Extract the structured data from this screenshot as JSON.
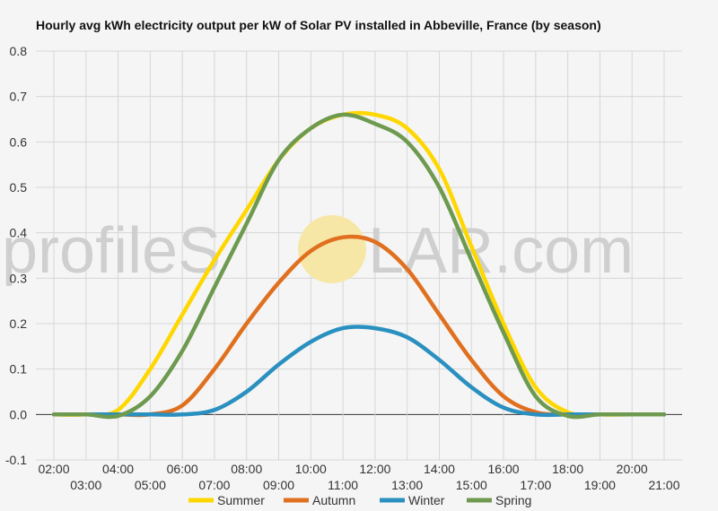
{
  "watermark": {
    "text_left": "profileS",
    "text_right": "LAR.com",
    "sun_color": "#f7e7a6"
  },
  "chart_data": {
    "type": "line",
    "title": "Hourly avg kWh electricity output per kW of Solar PV installed in Abbeville, France (by season)",
    "xlabel": "",
    "ylabel": "",
    "ylim": [
      -0.1,
      0.8
    ],
    "y_ticks": [
      "-0.1",
      "0.0",
      "0.1",
      "0.2",
      "0.3",
      "0.4",
      "0.5",
      "0.6",
      "0.7",
      "0.8"
    ],
    "y_tick_values": [
      -0.1,
      0.0,
      0.1,
      0.2,
      0.3,
      0.4,
      0.5,
      0.6,
      0.7,
      0.8
    ],
    "x_tick_labels": [
      "02:00",
      "03:00",
      "04:00",
      "05:00",
      "06:00",
      "07:00",
      "08:00",
      "09:00",
      "10:00",
      "11:00",
      "12:00",
      "13:00",
      "14:00",
      "15:00",
      "16:00",
      "17:00",
      "18:00",
      "19:00",
      "20:00",
      "21:00"
    ],
    "x": [
      2,
      3,
      4,
      5,
      6,
      7,
      8,
      9,
      10,
      11,
      12,
      13,
      14,
      15,
      16,
      17,
      18,
      19,
      20,
      21
    ],
    "grid": true,
    "legend_position": "bottom",
    "series": [
      {
        "name": "Summer",
        "color": "#ffd700",
        "values": [
          0,
          0,
          0.01,
          0.1,
          0.22,
          0.34,
          0.45,
          0.56,
          0.63,
          0.66,
          0.66,
          0.63,
          0.54,
          0.37,
          0.2,
          0.06,
          0.005,
          0,
          0,
          0
        ]
      },
      {
        "name": "Autumn",
        "color": "#e07020",
        "values": [
          0,
          0,
          0,
          0,
          0.02,
          0.1,
          0.2,
          0.29,
          0.36,
          0.39,
          0.38,
          0.32,
          0.22,
          0.12,
          0.04,
          0.005,
          0,
          0,
          0,
          0
        ]
      },
      {
        "name": "Winter",
        "color": "#2a90c0",
        "values": [
          0,
          0,
          0,
          0,
          0,
          0.01,
          0.05,
          0.11,
          0.16,
          0.19,
          0.19,
          0.17,
          0.12,
          0.06,
          0.015,
          0,
          0,
          0,
          0,
          0
        ]
      },
      {
        "name": "Spring",
        "color": "#6e9a50",
        "values": [
          0,
          0,
          -0.003,
          0.04,
          0.14,
          0.28,
          0.42,
          0.56,
          0.63,
          0.66,
          0.64,
          0.6,
          0.5,
          0.34,
          0.18,
          0.04,
          -0.003,
          0,
          0,
          0
        ]
      }
    ]
  }
}
